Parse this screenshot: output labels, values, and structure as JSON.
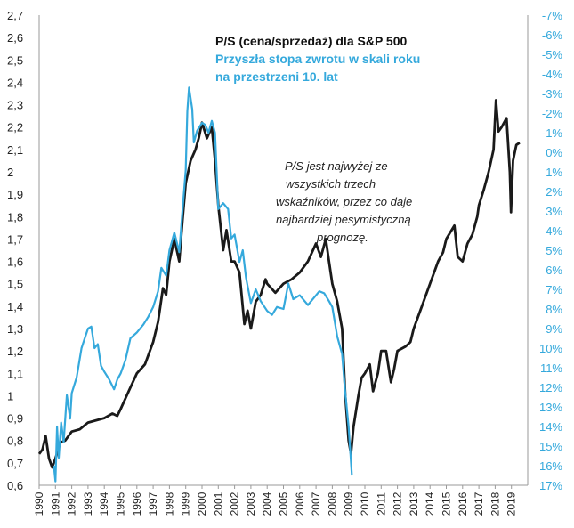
{
  "chart_data": {
    "type": "line",
    "title": "P/S (cena/sprzedaż) dla S&P 500",
    "subtitle": [
      "Przyszła stopa zwrotu w skali roku",
      "na przestrzeni 10. lat"
    ],
    "annotation": [
      "P/S jest najwyżej ze",
      "wszystkich trzech",
      "wskaźników, przez co daje",
      "najbardziej pesymistyczną",
      "prognozę."
    ],
    "xlim": [
      1990,
      2020
    ],
    "x_ticks": [
      "1990",
      "1991",
      "1992",
      "1993",
      "1994",
      "1995",
      "1996",
      "1997",
      "1998",
      "1999",
      "2000",
      "2001",
      "2002",
      "2003",
      "2004",
      "2005",
      "2006",
      "2007",
      "2008",
      "2009",
      "2010",
      "2011",
      "2012",
      "2013",
      "2014",
      "2015",
      "2016",
      "2017",
      "2018",
      "2019"
    ],
    "ylim_left": [
      0.6,
      2.7
    ],
    "y_ticks_left": [
      "0,6",
      "0,7",
      "0,8",
      "0,9",
      "1",
      "1,1",
      "1,2",
      "1,3",
      "1,4",
      "1,5",
      "1,6",
      "1,7",
      "1,8",
      "1,9",
      "2",
      "2,1",
      "2,2",
      "2,3",
      "2,4",
      "2,5",
      "2,6",
      "2,7"
    ],
    "ylim_right": [
      -7,
      17
    ],
    "y_right_inverted": true,
    "y_ticks_right": [
      "-7%",
      "-6%",
      "-5%",
      "-4%",
      "-3%",
      "-2%",
      "-1%",
      "0%",
      "1%",
      "2%",
      "3%",
      "4%",
      "5%",
      "6%",
      "7%",
      "8%",
      "9%",
      "10%",
      "11%",
      "12%",
      "13%",
      "14%",
      "15%",
      "16%",
      "17%"
    ],
    "grid": false,
    "series": [
      {
        "axis": "left",
        "color": "#1a1a1a",
        "points": [
          [
            1990.0,
            0.74
          ],
          [
            1990.2,
            0.76
          ],
          [
            1990.4,
            0.82
          ],
          [
            1990.6,
            0.72
          ],
          [
            1990.8,
            0.68
          ],
          [
            1991.0,
            0.72
          ],
          [
            1991.3,
            0.79
          ],
          [
            1991.6,
            0.8
          ],
          [
            1992.0,
            0.84
          ],
          [
            1992.5,
            0.85
          ],
          [
            1993.0,
            0.88
          ],
          [
            1993.5,
            0.89
          ],
          [
            1994.0,
            0.9
          ],
          [
            1994.5,
            0.92
          ],
          [
            1994.8,
            0.91
          ],
          [
            1995.0,
            0.94
          ],
          [
            1995.5,
            1.02
          ],
          [
            1996.0,
            1.1
          ],
          [
            1996.5,
            1.14
          ],
          [
            1997.0,
            1.24
          ],
          [
            1997.3,
            1.33
          ],
          [
            1997.6,
            1.48
          ],
          [
            1997.8,
            1.45
          ],
          [
            1998.0,
            1.6
          ],
          [
            1998.3,
            1.7
          ],
          [
            1998.6,
            1.6
          ],
          [
            1998.8,
            1.78
          ],
          [
            1999.0,
            1.95
          ],
          [
            1999.3,
            2.05
          ],
          [
            1999.6,
            2.1
          ],
          [
            1999.8,
            2.15
          ],
          [
            2000.0,
            2.22
          ],
          [
            2000.3,
            2.15
          ],
          [
            2000.6,
            2.2
          ],
          [
            2000.8,
            2.05
          ],
          [
            2001.0,
            1.85
          ],
          [
            2001.3,
            1.65
          ],
          [
            2001.5,
            1.74
          ],
          [
            2001.8,
            1.6
          ],
          [
            2002.0,
            1.6
          ],
          [
            2002.3,
            1.55
          ],
          [
            2002.6,
            1.32
          ],
          [
            2002.8,
            1.38
          ],
          [
            2003.0,
            1.3
          ],
          [
            2003.3,
            1.42
          ],
          [
            2003.6,
            1.45
          ],
          [
            2003.9,
            1.52
          ],
          [
            2004.0,
            1.5
          ],
          [
            2004.5,
            1.46
          ],
          [
            2005.0,
            1.5
          ],
          [
            2005.5,
            1.52
          ],
          [
            2006.0,
            1.55
          ],
          [
            2006.5,
            1.6
          ],
          [
            2007.0,
            1.68
          ],
          [
            2007.3,
            1.62
          ],
          [
            2007.6,
            1.7
          ],
          [
            2007.8,
            1.6
          ],
          [
            2008.0,
            1.5
          ],
          [
            2008.3,
            1.42
          ],
          [
            2008.6,
            1.3
          ],
          [
            2008.8,
            1.0
          ],
          [
            2009.0,
            0.8
          ],
          [
            2009.15,
            0.74
          ],
          [
            2009.3,
            0.86
          ],
          [
            2009.6,
            1.0
          ],
          [
            2009.8,
            1.08
          ],
          [
            2010.0,
            1.1
          ],
          [
            2010.3,
            1.14
          ],
          [
            2010.5,
            1.02
          ],
          [
            2010.8,
            1.1
          ],
          [
            2011.0,
            1.2
          ],
          [
            2011.3,
            1.2
          ],
          [
            2011.6,
            1.06
          ],
          [
            2011.8,
            1.12
          ],
          [
            2012.0,
            1.2
          ],
          [
            2012.5,
            1.22
          ],
          [
            2012.8,
            1.24
          ],
          [
            2013.0,
            1.3
          ],
          [
            2013.5,
            1.4
          ],
          [
            2014.0,
            1.5
          ],
          [
            2014.5,
            1.6
          ],
          [
            2014.8,
            1.64
          ],
          [
            2015.0,
            1.7
          ],
          [
            2015.5,
            1.76
          ],
          [
            2015.7,
            1.62
          ],
          [
            2016.0,
            1.6
          ],
          [
            2016.3,
            1.68
          ],
          [
            2016.6,
            1.72
          ],
          [
            2016.9,
            1.8
          ],
          [
            2017.0,
            1.85
          ],
          [
            2017.3,
            1.92
          ],
          [
            2017.6,
            2.0
          ],
          [
            2017.9,
            2.1
          ],
          [
            2018.05,
            2.32
          ],
          [
            2018.2,
            2.18
          ],
          [
            2018.4,
            2.2
          ],
          [
            2018.7,
            2.24
          ],
          [
            2018.9,
            2.0
          ],
          [
            2018.97,
            1.82
          ],
          [
            2019.1,
            2.05
          ],
          [
            2019.3,
            2.12
          ],
          [
            2019.5,
            2.13
          ]
        ]
      },
      {
        "axis": "right",
        "color": "#35a9dc",
        "points": [
          [
            1990.9,
            16.0
          ],
          [
            1991.0,
            16.8
          ],
          [
            1991.1,
            14.0
          ],
          [
            1991.2,
            15.6
          ],
          [
            1991.35,
            13.8
          ],
          [
            1991.5,
            14.8
          ],
          [
            1991.7,
            12.4
          ],
          [
            1991.9,
            13.6
          ],
          [
            1992.0,
            12.3
          ],
          [
            1992.3,
            11.5
          ],
          [
            1992.6,
            10.0
          ],
          [
            1992.8,
            9.5
          ],
          [
            1993.0,
            9.0
          ],
          [
            1993.2,
            8.9
          ],
          [
            1993.4,
            10.0
          ],
          [
            1993.6,
            9.8
          ],
          [
            1993.8,
            10.9
          ],
          [
            1994.0,
            11.2
          ],
          [
            1994.3,
            11.6
          ],
          [
            1994.6,
            12.1
          ],
          [
            1994.8,
            11.6
          ],
          [
            1995.0,
            11.3
          ],
          [
            1995.3,
            10.6
          ],
          [
            1995.6,
            9.5
          ],
          [
            1996.0,
            9.2
          ],
          [
            1996.4,
            8.8
          ],
          [
            1996.7,
            8.4
          ],
          [
            1997.0,
            7.9
          ],
          [
            1997.3,
            7.1
          ],
          [
            1997.5,
            5.9
          ],
          [
            1997.8,
            6.3
          ],
          [
            1998.0,
            5.0
          ],
          [
            1998.3,
            4.1
          ],
          [
            1998.6,
            5.1
          ],
          [
            1998.8,
            3.0
          ],
          [
            1999.0,
            0.9
          ],
          [
            1999.1,
            -2.1
          ],
          [
            1999.2,
            -3.3
          ],
          [
            1999.4,
            -2.2
          ],
          [
            1999.5,
            -0.5
          ],
          [
            1999.7,
            -1.1
          ],
          [
            2000.0,
            -1.5
          ],
          [
            2000.2,
            -1.4
          ],
          [
            2000.4,
            -1.0
          ],
          [
            2000.6,
            -1.6
          ],
          [
            2000.8,
            -1.0
          ],
          [
            2001.0,
            2.9
          ],
          [
            2001.3,
            2.6
          ],
          [
            2001.6,
            2.9
          ],
          [
            2001.8,
            4.4
          ],
          [
            2002.0,
            4.2
          ],
          [
            2002.3,
            5.6
          ],
          [
            2002.5,
            5.0
          ],
          [
            2002.7,
            6.4
          ],
          [
            2003.0,
            7.7
          ],
          [
            2003.3,
            7.0
          ],
          [
            2003.6,
            7.6
          ],
          [
            2004.0,
            8.1
          ],
          [
            2004.3,
            8.3
          ],
          [
            2004.6,
            7.9
          ],
          [
            2005.0,
            8.0
          ],
          [
            2005.3,
            6.7
          ],
          [
            2005.6,
            7.5
          ],
          [
            2006.0,
            7.3
          ],
          [
            2006.5,
            7.8
          ],
          [
            2006.9,
            7.4
          ],
          [
            2007.2,
            7.1
          ],
          [
            2007.5,
            7.2
          ],
          [
            2007.8,
            7.6
          ],
          [
            2008.0,
            7.9
          ],
          [
            2008.3,
            9.4
          ],
          [
            2008.6,
            10.3
          ],
          [
            2008.8,
            12.3
          ],
          [
            2009.0,
            14.0
          ],
          [
            2009.1,
            15.2
          ],
          [
            2009.2,
            16.5
          ]
        ]
      }
    ]
  }
}
